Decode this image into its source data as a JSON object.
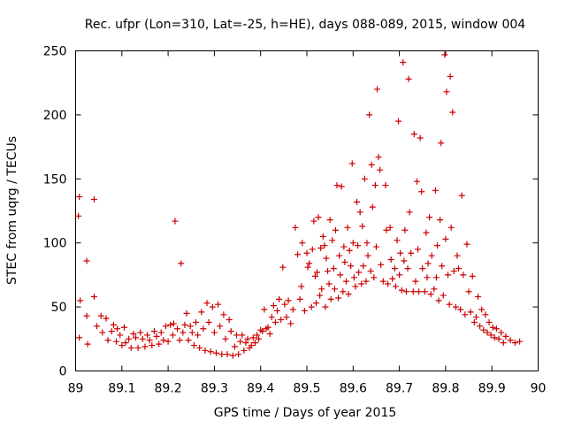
{
  "chart_data": {
    "type": "scatter",
    "title": "Rec. ufpr (Lon=310, Lat=-25, h=HE), days 088-089, 2015, window 004",
    "xlabel": "GPS time / Days of year 2015",
    "ylabel": "STEC from uqrg / TECUs",
    "xlim": [
      89.0,
      90.0
    ],
    "ylim": [
      0,
      250
    ],
    "xticks": [
      89.0,
      89.1,
      89.2,
      89.3,
      89.4,
      89.5,
      89.6,
      89.7,
      89.8,
      89.9,
      90.0
    ],
    "xtick_labels": [
      "89",
      "89.1",
      "89.2",
      "89.3",
      "89.4",
      "89.5",
      "89.6",
      "89.7",
      "89.8",
      "89.9",
      "90"
    ],
    "yticks": [
      0,
      50,
      100,
      150,
      200,
      250
    ],
    "ytick_labels": [
      "0",
      "50",
      "100",
      "150",
      "200",
      "250"
    ],
    "grid": false,
    "marker": "+",
    "series": [
      {
        "name": "STEC",
        "color": "#cc0000",
        "points": [
          [
            89.006,
            121
          ],
          [
            89.008,
            136
          ],
          [
            89.01,
            55
          ],
          [
            89.008,
            26
          ],
          [
            89.024,
            86
          ],
          [
            89.024,
            43
          ],
          [
            89.026,
            21
          ],
          [
            89.04,
            134
          ],
          [
            89.04,
            58
          ],
          [
            89.046,
            35
          ],
          [
            89.055,
            43
          ],
          [
            89.058,
            30
          ],
          [
            89.066,
            41
          ],
          [
            89.07,
            24
          ],
          [
            89.078,
            31
          ],
          [
            89.082,
            36
          ],
          [
            89.088,
            23
          ],
          [
            89.09,
            33
          ],
          [
            89.096,
            28
          ],
          [
            89.1,
            20
          ],
          [
            89.105,
            34
          ],
          [
            89.108,
            22
          ],
          [
            89.115,
            25
          ],
          [
            89.12,
            18
          ],
          [
            89.125,
            29
          ],
          [
            89.13,
            26
          ],
          [
            89.135,
            18
          ],
          [
            89.14,
            30
          ],
          [
            89.145,
            25
          ],
          [
            89.15,
            19
          ],
          [
            89.155,
            28
          ],
          [
            89.16,
            24
          ],
          [
            89.165,
            20
          ],
          [
            89.17,
            31
          ],
          [
            89.175,
            27
          ],
          [
            89.18,
            21
          ],
          [
            89.185,
            30
          ],
          [
            89.19,
            24
          ],
          [
            89.195,
            35
          ],
          [
            89.2,
            23
          ],
          [
            89.205,
            36
          ],
          [
            89.21,
            28
          ],
          [
            89.212,
            37
          ],
          [
            89.215,
            117
          ],
          [
            89.22,
            33
          ],
          [
            89.225,
            24
          ],
          [
            89.228,
            84
          ],
          [
            89.232,
            30
          ],
          [
            89.236,
            36
          ],
          [
            89.24,
            45
          ],
          [
            89.244,
            24
          ],
          [
            89.248,
            35
          ],
          [
            89.252,
            30
          ],
          [
            89.256,
            20
          ],
          [
            89.26,
            38
          ],
          [
            89.264,
            28
          ],
          [
            89.268,
            18
          ],
          [
            89.272,
            46
          ],
          [
            89.276,
            33
          ],
          [
            89.28,
            16
          ],
          [
            89.284,
            53
          ],
          [
            89.288,
            38
          ],
          [
            89.292,
            15
          ],
          [
            89.296,
            50
          ],
          [
            89.3,
            30
          ],
          [
            89.304,
            14
          ],
          [
            89.308,
            52
          ],
          [
            89.312,
            35
          ],
          [
            89.316,
            13
          ],
          [
            89.32,
            44
          ],
          [
            89.324,
            25
          ],
          [
            89.328,
            13
          ],
          [
            89.332,
            40
          ],
          [
            89.336,
            31
          ],
          [
            89.34,
            12
          ],
          [
            89.344,
            19
          ],
          [
            89.348,
            28
          ],
          [
            89.352,
            13
          ],
          [
            89.356,
            23
          ],
          [
            89.36,
            28
          ],
          [
            89.364,
            16
          ],
          [
            89.368,
            22
          ],
          [
            89.372,
            25
          ],
          [
            89.376,
            18
          ],
          [
            89.38,
            20
          ],
          [
            89.384,
            26
          ],
          [
            89.388,
            22
          ],
          [
            89.392,
            28
          ],
          [
            89.396,
            25
          ],
          [
            89.4,
            32
          ],
          [
            89.404,
            31
          ],
          [
            89.408,
            48
          ],
          [
            89.412,
            33
          ],
          [
            89.416,
            34
          ],
          [
            89.42,
            29
          ],
          [
            89.424,
            42
          ],
          [
            89.428,
            51
          ],
          [
            89.432,
            38
          ],
          [
            89.436,
            47
          ],
          [
            89.44,
            56
          ],
          [
            89.444,
            40
          ],
          [
            89.448,
            81
          ],
          [
            89.452,
            52
          ],
          [
            89.456,
            42
          ],
          [
            89.46,
            55
          ],
          [
            89.465,
            37
          ],
          [
            89.47,
            48
          ],
          [
            89.475,
            112
          ],
          [
            89.48,
            91
          ],
          [
            89.485,
            56
          ],
          [
            89.488,
            66
          ],
          [
            89.49,
            100
          ],
          [
            89.495,
            47
          ],
          [
            89.5,
            92
          ],
          [
            89.502,
            81
          ],
          [
            89.505,
            84
          ],
          [
            89.51,
            50
          ],
          [
            89.512,
            95
          ],
          [
            89.515,
            117
          ],
          [
            89.518,
            74
          ],
          [
            89.52,
            53
          ],
          [
            89.522,
            77
          ],
          [
            89.525,
            120
          ],
          [
            89.528,
            59
          ],
          [
            89.53,
            96
          ],
          [
            89.532,
            64
          ],
          [
            89.535,
            105
          ],
          [
            89.538,
            98
          ],
          [
            89.54,
            50
          ],
          [
            89.542,
            88
          ],
          [
            89.545,
            78
          ],
          [
            89.548,
            68
          ],
          [
            89.55,
            118
          ],
          [
            89.552,
            56
          ],
          [
            89.555,
            102
          ],
          [
            89.558,
            80
          ],
          [
            89.56,
            64
          ],
          [
            89.562,
            110
          ],
          [
            89.565,
            145
          ],
          [
            89.568,
            57
          ],
          [
            89.57,
            90
          ],
          [
            89.572,
            75
          ],
          [
            89.575,
            144
          ],
          [
            89.578,
            62
          ],
          [
            89.58,
            97
          ],
          [
            89.582,
            85
          ],
          [
            89.585,
            70
          ],
          [
            89.588,
            112
          ],
          [
            89.59,
            60
          ],
          [
            89.592,
            94
          ],
          [
            89.595,
            82
          ],
          [
            89.598,
            162
          ],
          [
            89.6,
            100
          ],
          [
            89.602,
            73
          ],
          [
            89.605,
            66
          ],
          [
            89.608,
            132
          ],
          [
            89.61,
            98
          ],
          [
            89.612,
            77
          ],
          [
            89.615,
            124
          ],
          [
            89.618,
            68
          ],
          [
            89.62,
            113
          ],
          [
            89.622,
            82
          ],
          [
            89.625,
            150
          ],
          [
            89.628,
            70
          ],
          [
            89.63,
            100
          ],
          [
            89.632,
            90
          ],
          [
            89.635,
            200
          ],
          [
            89.638,
            78
          ],
          [
            89.64,
            161
          ],
          [
            89.642,
            128
          ],
          [
            89.645,
            73
          ],
          [
            89.648,
            145
          ],
          [
            89.65,
            97
          ],
          [
            89.652,
            220
          ],
          [
            89.655,
            167
          ],
          [
            89.658,
            157
          ],
          [
            89.66,
            83
          ],
          [
            89.665,
            70
          ],
          [
            89.67,
            145
          ],
          [
            89.672,
            110
          ],
          [
            89.675,
            68
          ],
          [
            89.68,
            112
          ],
          [
            89.682,
            87
          ],
          [
            89.685,
            72
          ],
          [
            89.69,
            80
          ],
          [
            89.692,
            66
          ],
          [
            89.695,
            102
          ],
          [
            89.698,
            195
          ],
          [
            89.7,
            75
          ],
          [
            89.702,
            92
          ],
          [
            89.705,
            63
          ],
          [
            89.708,
            241
          ],
          [
            89.71,
            86
          ],
          [
            89.712,
            110
          ],
          [
            89.715,
            62
          ],
          [
            89.718,
            80
          ],
          [
            89.72,
            228
          ],
          [
            89.722,
            124
          ],
          [
            89.725,
            92
          ],
          [
            89.73,
            62
          ],
          [
            89.732,
            185
          ],
          [
            89.735,
            70
          ],
          [
            89.738,
            148
          ],
          [
            89.74,
            95
          ],
          [
            89.742,
            62
          ],
          [
            89.745,
            182
          ],
          [
            89.748,
            140
          ],
          [
            89.75,
            80
          ],
          [
            89.755,
            62
          ],
          [
            89.758,
            108
          ],
          [
            89.76,
            73
          ],
          [
            89.762,
            84
          ],
          [
            89.765,
            120
          ],
          [
            89.768,
            60
          ],
          [
            89.77,
            90
          ],
          [
            89.775,
            64
          ],
          [
            89.778,
            141
          ],
          [
            89.78,
            73
          ],
          [
            89.782,
            98
          ],
          [
            89.785,
            55
          ],
          [
            89.788,
            118
          ],
          [
            89.79,
            178
          ],
          [
            89.792,
            82
          ],
          [
            89.795,
            59
          ],
          [
            89.798,
            247
          ],
          [
            89.8,
            103
          ],
          [
            89.802,
            218
          ],
          [
            89.805,
            75
          ],
          [
            89.808,
            52
          ],
          [
            89.81,
            230
          ],
          [
            89.812,
            112
          ],
          [
            89.815,
            202
          ],
          [
            89.818,
            78
          ],
          [
            89.822,
            50
          ],
          [
            89.825,
            90
          ],
          [
            89.828,
            80
          ],
          [
            89.832,
            48
          ],
          [
            89.835,
            137
          ],
          [
            89.838,
            75
          ],
          [
            89.842,
            44
          ],
          [
            89.846,
            99
          ],
          [
            89.85,
            62
          ],
          [
            89.854,
            46
          ],
          [
            89.858,
            74
          ],
          [
            89.862,
            38
          ],
          [
            89.866,
            42
          ],
          [
            89.87,
            58
          ],
          [
            89.874,
            35
          ],
          [
            89.878,
            48
          ],
          [
            89.882,
            32
          ],
          [
            89.886,
            44
          ],
          [
            89.89,
            30
          ],
          [
            89.894,
            38
          ],
          [
            89.898,
            28
          ],
          [
            89.902,
            34
          ],
          [
            89.906,
            26
          ],
          [
            89.91,
            33
          ],
          [
            89.915,
            25
          ],
          [
            89.92,
            30
          ],
          [
            89.925,
            22
          ],
          [
            89.93,
            27
          ],
          [
            89.94,
            24
          ],
          [
            89.95,
            22
          ],
          [
            89.96,
            23
          ]
        ]
      }
    ]
  }
}
